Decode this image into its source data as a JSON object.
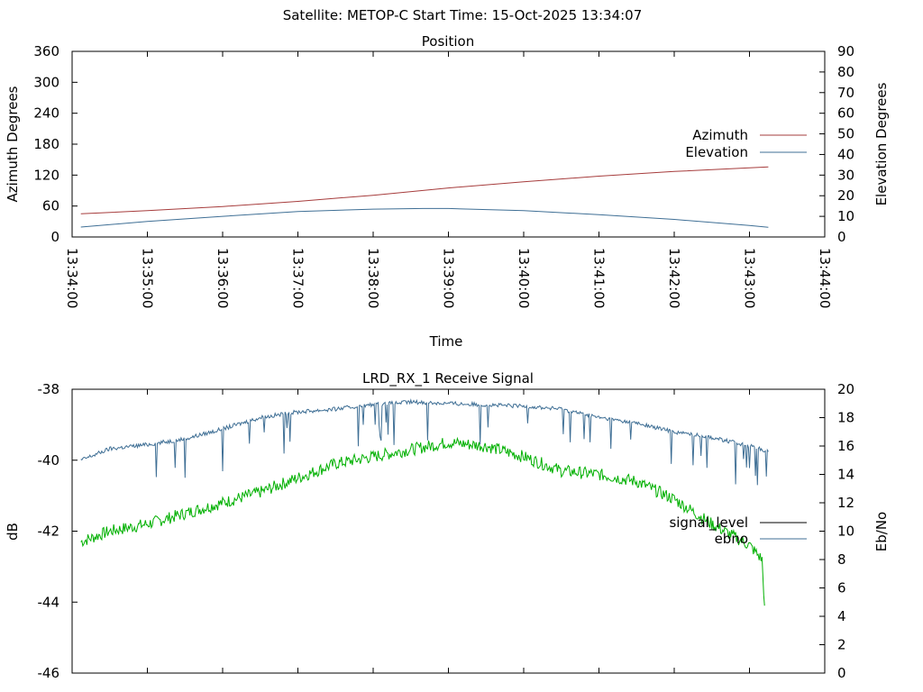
{
  "suptitle": "Satellite: METOP-C    Start Time: 15-Oct-2025 13:34:07",
  "chart_data": [
    {
      "type": "line",
      "title": "Position",
      "xlabel": "Time",
      "ylabel": "Azimuth Degrees",
      "y2label": "Elevation Degrees",
      "xlim": [
        "13:34:00",
        "13:44:00"
      ],
      "ylim": [
        0,
        360
      ],
      "y2lim": [
        0,
        90
      ],
      "yticks": [
        0,
        60,
        120,
        180,
        240,
        300,
        360
      ],
      "y2ticks": [
        0,
        10,
        20,
        30,
        40,
        50,
        60,
        70,
        80,
        90
      ],
      "xticklabels": [
        "13:34:00",
        "13:35:00",
        "13:36:00",
        "13:37:00",
        "13:38:00",
        "13:39:00",
        "13:40:00",
        "13:41:00",
        "13:42:00",
        "13:43:00",
        "13:44:00"
      ],
      "grid": false,
      "legend_position": "right",
      "series": [
        {
          "name": "Azimuth",
          "axis": "left",
          "color": "#a63c3c",
          "points": [
            [
              "13:34:07",
              45
            ],
            [
              "13:35:00",
              51
            ],
            [
              "13:36:00",
              59
            ],
            [
              "13:37:00",
              69
            ],
            [
              "13:38:00",
              81
            ],
            [
              "13:39:00",
              95
            ],
            [
              "13:40:00",
              107
            ],
            [
              "13:41:00",
              118
            ],
            [
              "13:42:00",
              127
            ],
            [
              "13:43:00",
              134
            ],
            [
              "13:43:15",
              136
            ]
          ]
        },
        {
          "name": "Elevation",
          "axis": "right",
          "color": "#3f6f95",
          "points": [
            [
              "13:34:07",
              4.8
            ],
            [
              "13:35:00",
              7.5
            ],
            [
              "13:36:00",
              10
            ],
            [
              "13:37:00",
              12.3
            ],
            [
              "13:38:00",
              13.5
            ],
            [
              "13:38:40",
              13.8
            ],
            [
              "13:39:00",
              13.8
            ],
            [
              "13:40:00",
              12.8
            ],
            [
              "13:41:00",
              10.8
            ],
            [
              "13:42:00",
              8.5
            ],
            [
              "13:43:00",
              5.6
            ],
            [
              "13:43:15",
              4.7
            ]
          ]
        }
      ]
    },
    {
      "type": "line",
      "title": "LRD_RX_1 Receive Signal",
      "ylabel": "dB",
      "y2label": "Eb/No",
      "xlim": [
        "13:34:00",
        "13:44:00"
      ],
      "ylim": [
        -46,
        -38
      ],
      "y2lim": [
        0,
        20
      ],
      "yticks": [
        -46,
        -44,
        -42,
        -40,
        -38
      ],
      "y2ticks": [
        0,
        2,
        4,
        6,
        8,
        10,
        12,
        14,
        16,
        18,
        20
      ],
      "grid": false,
      "legend_position": "right",
      "series": [
        {
          "name": "signal_level",
          "axis": "left",
          "color": "#00b000",
          "points": [
            [
              "13:34:07",
              -42.3
            ],
            [
              "13:34:30",
              -42.0
            ],
            [
              "13:35:00",
              -41.8
            ],
            [
              "13:35:30",
              -41.5
            ],
            [
              "13:36:00",
              -41.2
            ],
            [
              "13:36:30",
              -40.9
            ],
            [
              "13:37:00",
              -40.5
            ],
            [
              "13:37:30",
              -40.1
            ],
            [
              "13:38:00",
              -39.9
            ],
            [
              "13:38:30",
              -39.7
            ],
            [
              "13:39:00",
              -39.5
            ],
            [
              "13:39:30",
              -39.6
            ],
            [
              "13:40:00",
              -39.9
            ],
            [
              "13:40:30",
              -40.3
            ],
            [
              "13:41:00",
              -40.4
            ],
            [
              "13:41:30",
              -40.6
            ],
            [
              "13:42:00",
              -41.1
            ],
            [
              "13:42:30",
              -41.8
            ],
            [
              "13:43:00",
              -42.4
            ],
            [
              "13:43:10",
              -42.8
            ],
            [
              "13:43:12",
              -44.1
            ]
          ]
        },
        {
          "name": "ebno",
          "axis": "right",
          "color": "#3f6f95",
          "points": [
            [
              "13:34:07",
              15
            ],
            [
              "13:34:30",
              15.8
            ],
            [
              "13:35:00",
              16.1
            ],
            [
              "13:35:30",
              16.5
            ],
            [
              "13:36:00",
              17.2
            ],
            [
              "13:36:30",
              18.0
            ],
            [
              "13:37:00",
              18.4
            ],
            [
              "13:37:30",
              18.6
            ],
            [
              "13:38:00",
              18.9
            ],
            [
              "13:38:30",
              19.1
            ],
            [
              "13:39:00",
              19.0
            ],
            [
              "13:39:30",
              18.9
            ],
            [
              "13:40:00",
              18.8
            ],
            [
              "13:40:30",
              18.6
            ],
            [
              "13:41:00",
              18.0
            ],
            [
              "13:41:30",
              17.6
            ],
            [
              "13:42:00",
              17.0
            ],
            [
              "13:42:30",
              16.6
            ],
            [
              "13:43:00",
              16.0
            ],
            [
              "13:43:15",
              15.6
            ]
          ]
        }
      ]
    }
  ]
}
